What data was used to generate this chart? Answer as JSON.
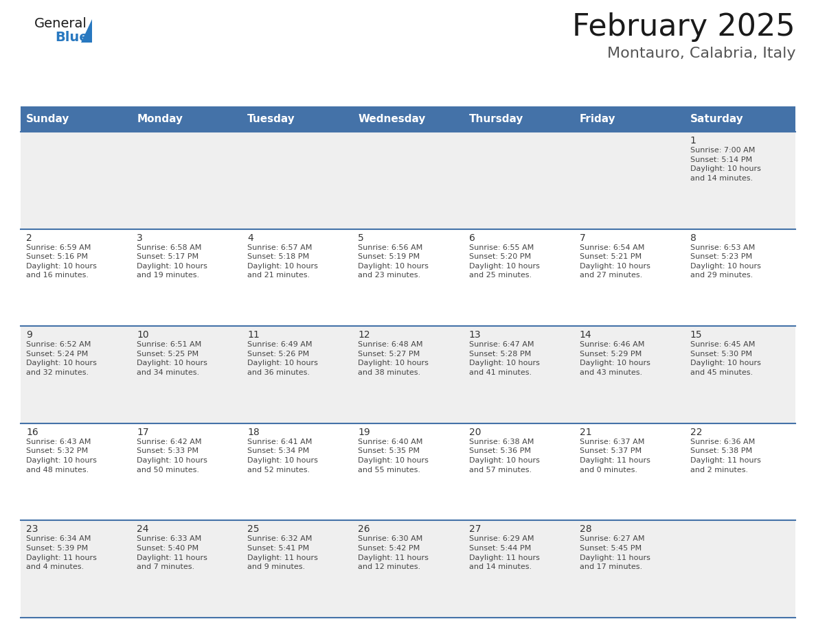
{
  "title": "February 2025",
  "subtitle": "Montauro, Calabria, Italy",
  "header_bg": "#4472a8",
  "header_text_color": "#ffffff",
  "day_names": [
    "Sunday",
    "Monday",
    "Tuesday",
    "Wednesday",
    "Thursday",
    "Friday",
    "Saturday"
  ],
  "odd_row_bg": "#efefef",
  "even_row_bg": "#ffffff",
  "border_color": "#4472a8",
  "text_color": "#444444",
  "num_color": "#333333",
  "calendar": [
    [
      {
        "day": "",
        "info": ""
      },
      {
        "day": "",
        "info": ""
      },
      {
        "day": "",
        "info": ""
      },
      {
        "day": "",
        "info": ""
      },
      {
        "day": "",
        "info": ""
      },
      {
        "day": "",
        "info": ""
      },
      {
        "day": "1",
        "info": "Sunrise: 7:00 AM\nSunset: 5:14 PM\nDaylight: 10 hours\nand 14 minutes."
      }
    ],
    [
      {
        "day": "2",
        "info": "Sunrise: 6:59 AM\nSunset: 5:16 PM\nDaylight: 10 hours\nand 16 minutes."
      },
      {
        "day": "3",
        "info": "Sunrise: 6:58 AM\nSunset: 5:17 PM\nDaylight: 10 hours\nand 19 minutes."
      },
      {
        "day": "4",
        "info": "Sunrise: 6:57 AM\nSunset: 5:18 PM\nDaylight: 10 hours\nand 21 minutes."
      },
      {
        "day": "5",
        "info": "Sunrise: 6:56 AM\nSunset: 5:19 PM\nDaylight: 10 hours\nand 23 minutes."
      },
      {
        "day": "6",
        "info": "Sunrise: 6:55 AM\nSunset: 5:20 PM\nDaylight: 10 hours\nand 25 minutes."
      },
      {
        "day": "7",
        "info": "Sunrise: 6:54 AM\nSunset: 5:21 PM\nDaylight: 10 hours\nand 27 minutes."
      },
      {
        "day": "8",
        "info": "Sunrise: 6:53 AM\nSunset: 5:23 PM\nDaylight: 10 hours\nand 29 minutes."
      }
    ],
    [
      {
        "day": "9",
        "info": "Sunrise: 6:52 AM\nSunset: 5:24 PM\nDaylight: 10 hours\nand 32 minutes."
      },
      {
        "day": "10",
        "info": "Sunrise: 6:51 AM\nSunset: 5:25 PM\nDaylight: 10 hours\nand 34 minutes."
      },
      {
        "day": "11",
        "info": "Sunrise: 6:49 AM\nSunset: 5:26 PM\nDaylight: 10 hours\nand 36 minutes."
      },
      {
        "day": "12",
        "info": "Sunrise: 6:48 AM\nSunset: 5:27 PM\nDaylight: 10 hours\nand 38 minutes."
      },
      {
        "day": "13",
        "info": "Sunrise: 6:47 AM\nSunset: 5:28 PM\nDaylight: 10 hours\nand 41 minutes."
      },
      {
        "day": "14",
        "info": "Sunrise: 6:46 AM\nSunset: 5:29 PM\nDaylight: 10 hours\nand 43 minutes."
      },
      {
        "day": "15",
        "info": "Sunrise: 6:45 AM\nSunset: 5:30 PM\nDaylight: 10 hours\nand 45 minutes."
      }
    ],
    [
      {
        "day": "16",
        "info": "Sunrise: 6:43 AM\nSunset: 5:32 PM\nDaylight: 10 hours\nand 48 minutes."
      },
      {
        "day": "17",
        "info": "Sunrise: 6:42 AM\nSunset: 5:33 PM\nDaylight: 10 hours\nand 50 minutes."
      },
      {
        "day": "18",
        "info": "Sunrise: 6:41 AM\nSunset: 5:34 PM\nDaylight: 10 hours\nand 52 minutes."
      },
      {
        "day": "19",
        "info": "Sunrise: 6:40 AM\nSunset: 5:35 PM\nDaylight: 10 hours\nand 55 minutes."
      },
      {
        "day": "20",
        "info": "Sunrise: 6:38 AM\nSunset: 5:36 PM\nDaylight: 10 hours\nand 57 minutes."
      },
      {
        "day": "21",
        "info": "Sunrise: 6:37 AM\nSunset: 5:37 PM\nDaylight: 11 hours\nand 0 minutes."
      },
      {
        "day": "22",
        "info": "Sunrise: 6:36 AM\nSunset: 5:38 PM\nDaylight: 11 hours\nand 2 minutes."
      }
    ],
    [
      {
        "day": "23",
        "info": "Sunrise: 6:34 AM\nSunset: 5:39 PM\nDaylight: 11 hours\nand 4 minutes."
      },
      {
        "day": "24",
        "info": "Sunrise: 6:33 AM\nSunset: 5:40 PM\nDaylight: 11 hours\nand 7 minutes."
      },
      {
        "day": "25",
        "info": "Sunrise: 6:32 AM\nSunset: 5:41 PM\nDaylight: 11 hours\nand 9 minutes."
      },
      {
        "day": "26",
        "info": "Sunrise: 6:30 AM\nSunset: 5:42 PM\nDaylight: 11 hours\nand 12 minutes."
      },
      {
        "day": "27",
        "info": "Sunrise: 6:29 AM\nSunset: 5:44 PM\nDaylight: 11 hours\nand 14 minutes."
      },
      {
        "day": "28",
        "info": "Sunrise: 6:27 AM\nSunset: 5:45 PM\nDaylight: 11 hours\nand 17 minutes."
      },
      {
        "day": "",
        "info": ""
      }
    ]
  ],
  "logo_text_general": "General",
  "logo_text_blue": "Blue",
  "logo_color_general": "#1a1a1a",
  "logo_color_blue": "#2878c0",
  "logo_triangle_color": "#2878c0",
  "title_fontsize": 32,
  "subtitle_fontsize": 16,
  "header_fontsize": 11,
  "day_num_fontsize": 10,
  "info_fontsize": 8
}
